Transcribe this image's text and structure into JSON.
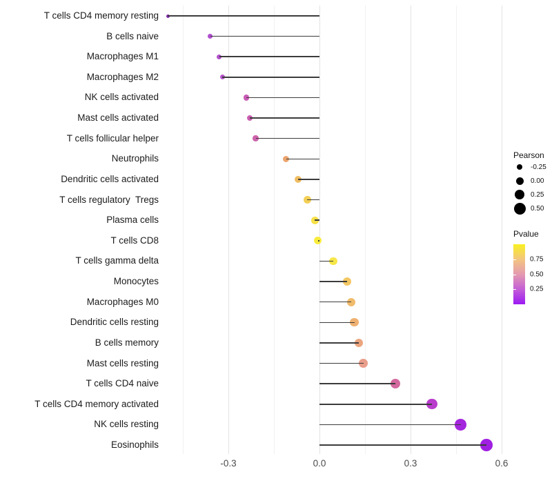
{
  "chart_data": {
    "type": "lollipop",
    "title": "",
    "xlabel": "",
    "ylabel": "",
    "x_ticks": [
      {
        "value": -0.3,
        "label": "-0.3"
      },
      {
        "value": 0.0,
        "label": "0.0"
      },
      {
        "value": 0.3,
        "label": "0.3"
      },
      {
        "value": 0.6,
        "label": "0.6"
      }
    ],
    "x_minor_ticks": [
      -0.45,
      -0.15,
      0.15,
      0.45
    ],
    "xlim": [
      -0.513,
      0.623
    ],
    "grid": "vertical-only",
    "background_color": "#ffffff",
    "stem_color": "#3b3b3b",
    "rows": [
      {
        "label": "T cells CD4 memory resting",
        "pearson": -0.5,
        "color": "#8227b0"
      },
      {
        "label": "B cells naive",
        "pearson": -0.36,
        "color": "#b150d0"
      },
      {
        "label": "Macrophages M1",
        "pearson": -0.33,
        "color": "#b151cd"
      },
      {
        "label": "Macrophages M2",
        "pearson": -0.32,
        "color": "#b554ca"
      },
      {
        "label": "NK cells activated",
        "pearson": -0.24,
        "color": "#c95cb5"
      },
      {
        "label": "Mast cells activated",
        "pearson": -0.23,
        "color": "#cb5fb1"
      },
      {
        "label": "T cells follicular helper",
        "pearson": -0.21,
        "color": "#cd63ab"
      },
      {
        "label": "Neutrophils",
        "pearson": -0.11,
        "color": "#eba46d"
      },
      {
        "label": "Dendritic cells activated",
        "pearson": -0.07,
        "color": "#f0bd62"
      },
      {
        "label": "T cells regulatory  Tregs",
        "pearson": -0.04,
        "color": "#f3cf56"
      },
      {
        "label": "Plasma cells",
        "pearson": -0.015,
        "color": "#f6e148"
      },
      {
        "label": "T cells CD8",
        "pearson": -0.005,
        "color": "#f8ec3d"
      },
      {
        "label": "T cells gamma delta",
        "pearson": 0.045,
        "color": "#f6e748"
      },
      {
        "label": "Monocytes",
        "pearson": 0.09,
        "color": "#f2c763"
      },
      {
        "label": "Macrophages M0",
        "pearson": 0.105,
        "color": "#f0bb6b"
      },
      {
        "label": "Dendritic cells resting",
        "pearson": 0.115,
        "color": "#eeb171"
      },
      {
        "label": "B cells memory",
        "pearson": 0.13,
        "color": "#eba57e"
      },
      {
        "label": "Mast cells resting",
        "pearson": 0.145,
        "color": "#e99e8b"
      },
      {
        "label": "T cells CD4 naive",
        "pearson": 0.25,
        "color": "#d3689f"
      },
      {
        "label": "T cells CD4 memory activated",
        "pearson": 0.37,
        "color": "#b93ccc"
      },
      {
        "label": "NK cells resting",
        "pearson": 0.465,
        "color": "#a427dd"
      },
      {
        "label": "Eosinophils",
        "pearson": 0.55,
        "color": "#a020e2"
      }
    ],
    "legend": {
      "size": {
        "title": "Pearson",
        "items": [
          {
            "label": "-0.25",
            "value": -0.25
          },
          {
            "label": "0.00",
            "value": 0.0
          },
          {
            "label": "0.25",
            "value": 0.25
          },
          {
            "label": "0.50",
            "value": 0.5
          }
        ]
      },
      "color": {
        "title": "Pvalue",
        "gradient_top_to_bottom": [
          "#f9f021",
          "#f3c57f",
          "#e49ab0",
          "#c45fd6",
          "#9b1af2"
        ],
        "ticks": [
          {
            "label": "0.75",
            "pos": 0.25
          },
          {
            "label": "0.50",
            "pos": 0.5
          },
          {
            "label": "0.25",
            "pos": 0.75
          }
        ]
      }
    }
  }
}
